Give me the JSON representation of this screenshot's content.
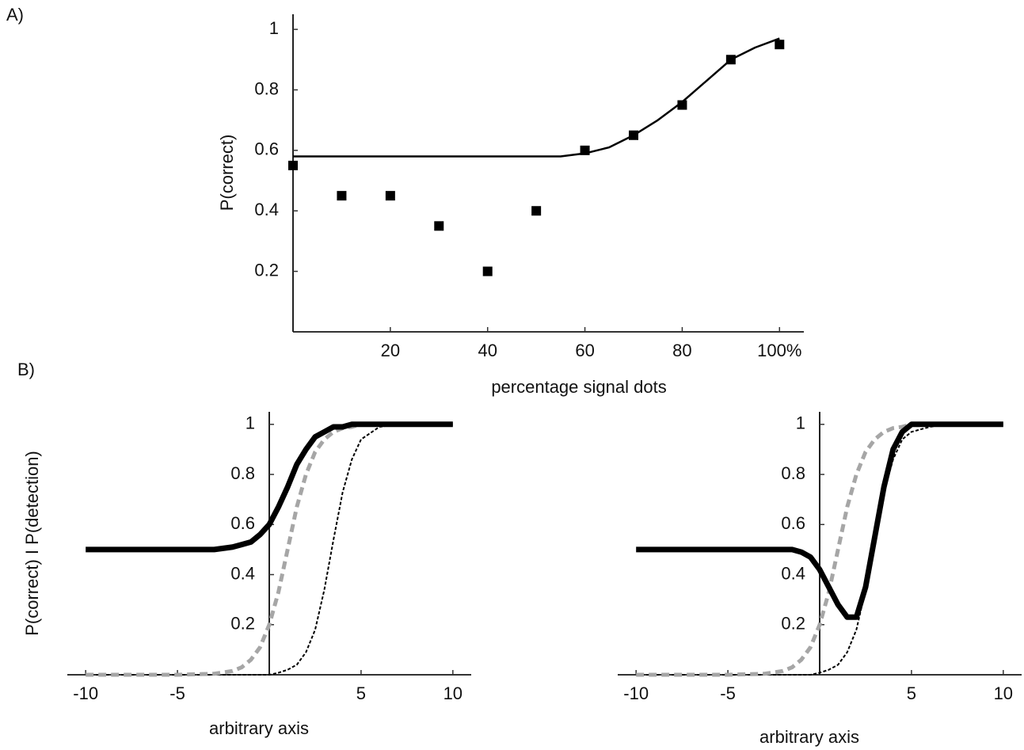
{
  "chart_data": [
    {
      "type": "scatter",
      "label": "A)",
      "ylabel": "P(correct)",
      "xlabel": "percentage signal dots",
      "xlim": [
        0,
        105
      ],
      "ylim": [
        0,
        1.05
      ],
      "xticks": [
        20,
        40,
        60,
        80,
        {
          "value": 100,
          "label": "100%"
        }
      ],
      "yticks": [
        0.2,
        0.4,
        0.6,
        0.8,
        1
      ],
      "series": [
        {
          "mode": "markers",
          "marker": "square",
          "color": "#000000",
          "x": [
            0,
            10,
            20,
            30,
            40,
            50,
            60,
            70,
            80,
            90,
            100
          ],
          "values": [
            0.55,
            0.45,
            0.45,
            0.35,
            0.2,
            0.4,
            0.6,
            0.65,
            0.75,
            0.9,
            0.95
          ]
        },
        {
          "mode": "line",
          "color": "#000000",
          "width": 2.5,
          "dash": false,
          "x": [
            0,
            10,
            20,
            30,
            40,
            50,
            55,
            60,
            65,
            70,
            75,
            80,
            85,
            90,
            95,
            100
          ],
          "values": [
            0.58,
            0.58,
            0.58,
            0.58,
            0.58,
            0.58,
            0.58,
            0.59,
            0.61,
            0.65,
            0.7,
            0.76,
            0.83,
            0.9,
            0.94,
            0.97
          ]
        }
      ]
    },
    {
      "type": "line",
      "label": "B)",
      "ylabel": "P(correct) I P(detection)",
      "xlabel": "arbitrary axis",
      "xlim": [
        -11,
        11
      ],
      "ylim": [
        0,
        1.05
      ],
      "xticks": [
        -10,
        -5,
        5,
        10
      ],
      "yticks": [
        0.2,
        0.4,
        0.6,
        0.8,
        1
      ],
      "series": [
        {
          "mode": "line",
          "color": "#000000",
          "width": 2,
          "dash": true,
          "x": [
            -10,
            -5,
            -3,
            -2,
            -1.5,
            -1,
            -0.5,
            0,
            0.5,
            1,
            1.5,
            2,
            2.5,
            3,
            3.5,
            4,
            4.5,
            5,
            6,
            7,
            10
          ],
          "values": [
            0,
            0,
            0,
            0,
            0,
            0,
            0,
            0,
            0.008,
            0.02,
            0.04,
            0.09,
            0.18,
            0.34,
            0.54,
            0.73,
            0.86,
            0.94,
            0.99,
            1,
            1
          ]
        },
        {
          "mode": "line",
          "color": "#a6a6a6",
          "width": 5,
          "dash": true,
          "x": [
            -10,
            -5,
            -3,
            -2,
            -1.5,
            -1,
            -0.5,
            0,
            0.5,
            1,
            1.5,
            2,
            2.5,
            3,
            3.5,
            4,
            4.5,
            5,
            6,
            7,
            10
          ],
          "values": [
            0,
            0,
            0.004,
            0.015,
            0.03,
            0.06,
            0.11,
            0.2,
            0.33,
            0.5,
            0.67,
            0.8,
            0.89,
            0.94,
            0.97,
            0.985,
            0.99,
            1,
            1,
            1,
            1
          ]
        },
        {
          "mode": "line",
          "color": "#000000",
          "width": 7,
          "dash": false,
          "x": [
            -10,
            -5,
            -3,
            -2,
            -1.5,
            -1,
            -0.5,
            0,
            0.5,
            1,
            1.5,
            2,
            2.5,
            3,
            3.5,
            4,
            4.5,
            5,
            6,
            7,
            10
          ],
          "values": [
            0.5,
            0.5,
            0.5,
            0.51,
            0.52,
            0.53,
            0.56,
            0.6,
            0.67,
            0.75,
            0.84,
            0.9,
            0.95,
            0.97,
            0.99,
            0.99,
            1,
            1,
            1,
            1,
            1
          ]
        }
      ]
    },
    {
      "type": "line",
      "xlabel": "arbitrary axis",
      "xlim": [
        -11,
        11
      ],
      "ylim": [
        0,
        1.05
      ],
      "xticks": [
        -10,
        -5,
        5,
        10
      ],
      "yticks": [
        0.2,
        0.4,
        0.6,
        0.8,
        1
      ],
      "series": [
        {
          "mode": "line",
          "color": "#000000",
          "width": 2,
          "dash": true,
          "x": [
            -10,
            -5,
            -3,
            -2,
            -1.5,
            -1,
            -0.5,
            0,
            0.5,
            1,
            1.5,
            2,
            2.5,
            3,
            3.5,
            4,
            4.5,
            5,
            6,
            7,
            10
          ],
          "values": [
            0,
            0,
            0,
            0,
            0,
            0,
            0,
            0.008,
            0.02,
            0.04,
            0.09,
            0.18,
            0.34,
            0.54,
            0.73,
            0.86,
            0.94,
            0.97,
            0.99,
            1,
            1
          ]
        },
        {
          "mode": "line",
          "color": "#a6a6a6",
          "width": 5,
          "dash": true,
          "x": [
            -10,
            -5,
            -3,
            -2,
            -1.5,
            -1,
            -0.5,
            0,
            0.5,
            1,
            1.5,
            2,
            2.5,
            3,
            3.5,
            4,
            4.5,
            5,
            6,
            7,
            10
          ],
          "values": [
            0,
            0,
            0.004,
            0.015,
            0.03,
            0.06,
            0.11,
            0.2,
            0.33,
            0.5,
            0.67,
            0.8,
            0.89,
            0.94,
            0.97,
            0.985,
            0.99,
            1,
            1,
            1,
            1
          ]
        },
        {
          "mode": "line",
          "color": "#000000",
          "width": 7,
          "dash": false,
          "x": [
            -10,
            -5,
            -3,
            -2,
            -1.5,
            -1,
            -0.5,
            0,
            0.5,
            1,
            1.5,
            2,
            2.5,
            3,
            3.5,
            4,
            4.5,
            5,
            6,
            7,
            10
          ],
          "values": [
            0.5,
            0.5,
            0.5,
            0.5,
            0.5,
            0.49,
            0.47,
            0.42,
            0.35,
            0.28,
            0.23,
            0.23,
            0.35,
            0.55,
            0.75,
            0.9,
            0.97,
            1,
            1,
            1,
            1
          ]
        }
      ]
    }
  ]
}
